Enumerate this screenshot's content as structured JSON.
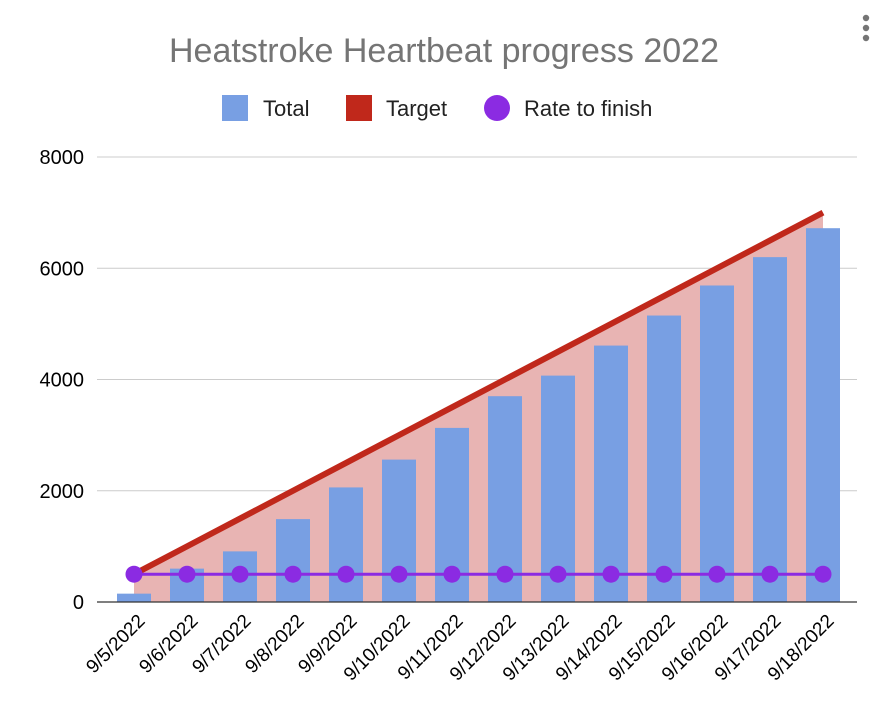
{
  "chart_data": {
    "type": "bar",
    "title": "Heatstroke Heartbeat progress 2022",
    "categories": [
      "9/5/2022",
      "9/6/2022",
      "9/7/2022",
      "9/8/2022",
      "9/9/2022",
      "9/10/2022",
      "9/11/2022",
      "9/12/2022",
      "9/13/2022",
      "9/14/2022",
      "9/15/2022",
      "9/16/2022",
      "9/17/2022",
      "9/18/2022"
    ],
    "series": [
      {
        "name": "Total",
        "type": "bar",
        "color": "#789fe3",
        "values": [
          150,
          600,
          910,
          1490,
          2060,
          2560,
          3130,
          3700,
          4070,
          4610,
          5150,
          5690,
          6200,
          6720
        ]
      },
      {
        "name": "Target",
        "type": "area",
        "color": "#c0281b",
        "fill": "#e8b4b3",
        "values": [
          500,
          1000,
          1500,
          2000,
          2500,
          3000,
          3500,
          4000,
          4500,
          5000,
          5500,
          6000,
          6500,
          7000
        ]
      },
      {
        "name": "Rate to finish",
        "type": "line",
        "color": "#8b2be2",
        "values": [
          500,
          500,
          500,
          500,
          500,
          500,
          500,
          500,
          500,
          500,
          500,
          500,
          500,
          500
        ]
      }
    ],
    "yticks": [
      "0",
      "2000",
      "4000",
      "6000",
      "8000"
    ],
    "ylim": [
      0,
      8000
    ],
    "xlabel": "",
    "ylabel": "",
    "grid": true,
    "legend": "top"
  },
  "menu_icon": "more-vert-icon"
}
